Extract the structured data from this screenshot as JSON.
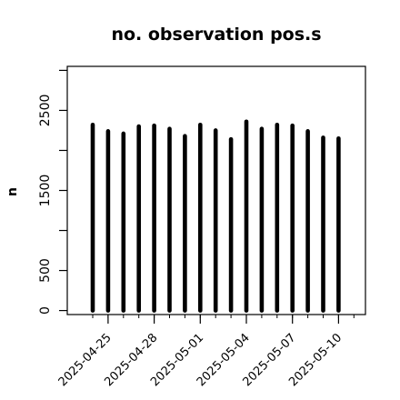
{
  "chart_data": {
    "type": "bar",
    "title": "no. observation pos.s",
    "xlabel": "",
    "ylabel": "n",
    "x": [
      "2025-04-24",
      "2025-04-25",
      "2025-04-26",
      "2025-04-27",
      "2025-04-28",
      "2025-04-29",
      "2025-04-30",
      "2025-05-01",
      "2025-05-02",
      "2025-05-03",
      "2025-05-04",
      "2025-05-05",
      "2025-05-06",
      "2025-05-07",
      "2025-05-08",
      "2025-05-09",
      "2025-05-10"
    ],
    "values": [
      2320,
      2240,
      2210,
      2300,
      2310,
      2270,
      2180,
      2320,
      2250,
      2140,
      2360,
      2270,
      2320,
      2310,
      2240,
      2160,
      2150
    ],
    "ylim": [
      -50,
      3050
    ],
    "yticks": [
      0,
      500,
      1500,
      2500
    ],
    "xticks": [
      {
        "date": "2025-04-25",
        "label": "2025-04-25",
        "color": "#000000"
      },
      {
        "date": "2025-04-28",
        "label": "2025-04-28",
        "color": "#000000"
      },
      {
        "date": "2025-05-01",
        "label": "2025-05-01",
        "color": "#228B22"
      },
      {
        "date": "2025-05-04",
        "label": "2025-05-04",
        "color": "#000000"
      },
      {
        "date": "2025-05-07",
        "label": "2025-05-07",
        "color": "#000000"
      },
      {
        "date": "2025-05-10",
        "label": "2025-05-10",
        "color": "#000000"
      }
    ],
    "bar_color": "#000000",
    "grid": false,
    "legend": "none"
  }
}
